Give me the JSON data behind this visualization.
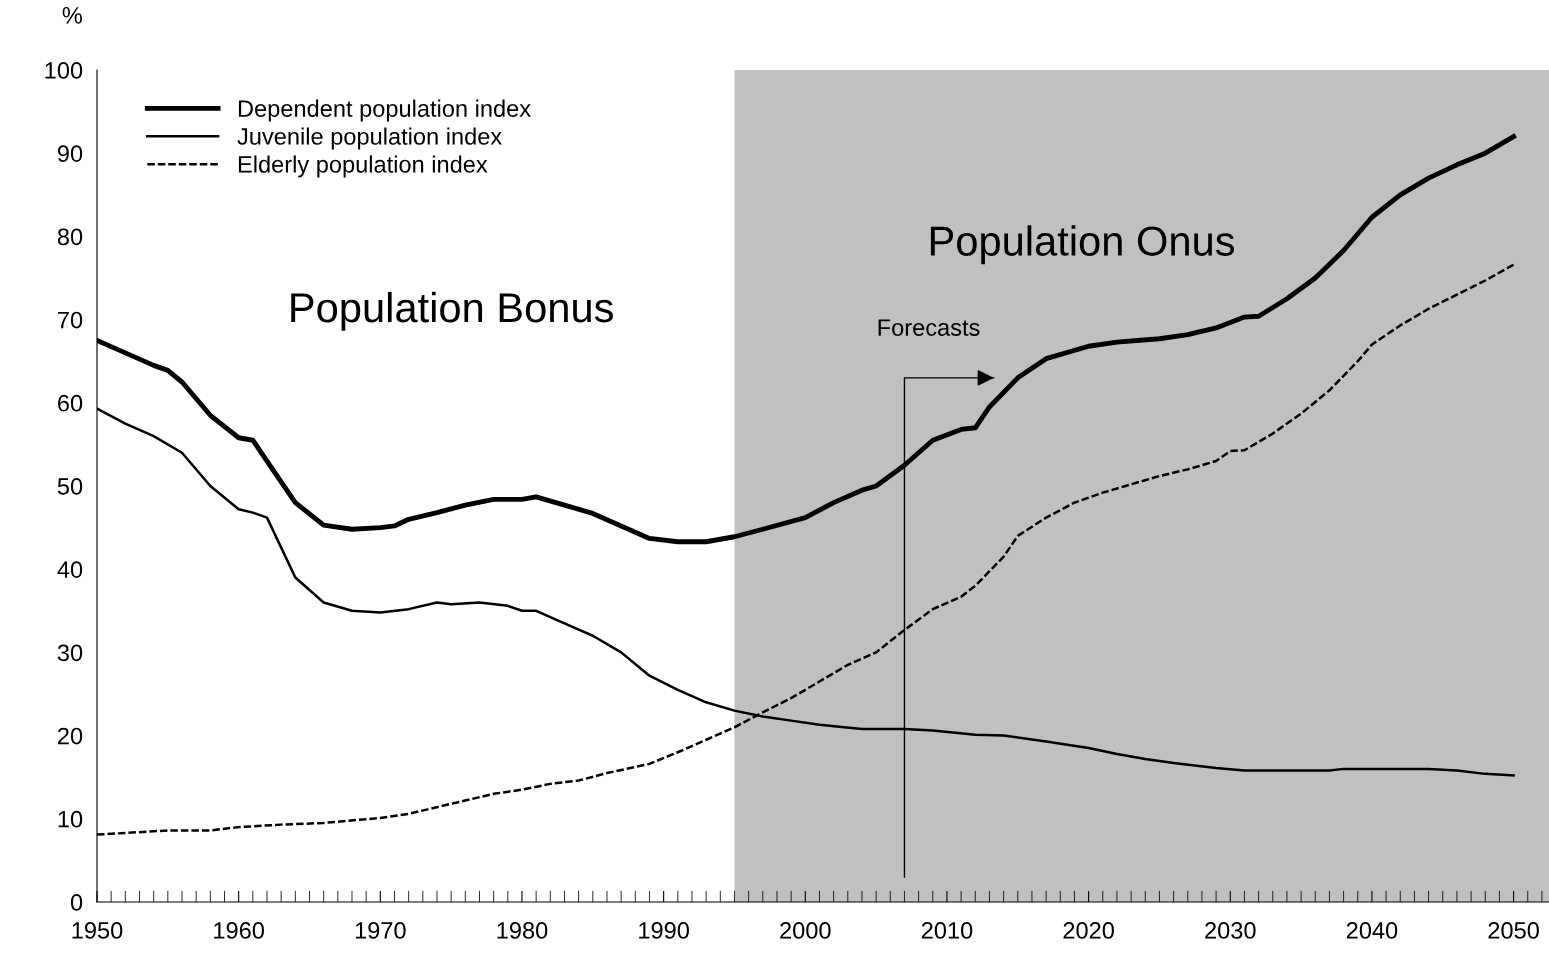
{
  "chart_data": {
    "type": "line",
    "ylabel": "%",
    "xlim": [
      1950,
      2052.5
    ],
    "xticks": [
      1950,
      1960,
      1970,
      1980,
      1990,
      2000,
      2010,
      2020,
      2030,
      2040,
      2050
    ],
    "ylim": [
      0,
      100
    ],
    "yticks": [
      0,
      10,
      20,
      30,
      40,
      50,
      60,
      70,
      80,
      90,
      100
    ],
    "grid": false,
    "legend": "top left",
    "marker": "none",
    "bands": [
      {
        "axis": "x",
        "from": 1995,
        "to": 2052.5,
        "color": "#c0c0c0"
      }
    ],
    "annotations": [
      "Population Bonus",
      "Population Onus",
      "Forecasts"
    ],
    "series": [
      {
        "name": "Dependent population index",
        "color": "#000000",
        "line_style": "solid",
        "x": [
          1950,
          1952,
          1954,
          1955,
          1956,
          1958,
          1960,
          1961,
          1962,
          1964,
          1966,
          1968,
          1970,
          1971,
          1972,
          1974,
          1976,
          1978,
          1980,
          1981,
          1983,
          1985,
          1987,
          1989,
          1991,
          1993,
          1995,
          1997,
          2000,
          2002,
          2004,
          2005,
          2007,
          2009,
          2011,
          2012,
          2013,
          2015,
          2017,
          2020,
          2022,
          2025,
          2027,
          2029,
          2031,
          2032,
          2034,
          2036,
          2038,
          2040,
          2042,
          2044,
          2046,
          2048,
          2050
        ],
        "values": [
          67.5,
          66,
          64.5,
          63.9,
          62.5,
          58.5,
          55.8,
          55.5,
          53,
          48,
          45.3,
          44.8,
          45,
          45.2,
          46,
          46.8,
          47.7,
          48.4,
          48.4,
          48.7,
          47.7,
          46.7,
          45.2,
          43.7,
          43.3,
          43.3,
          43.9,
          44.8,
          46.2,
          48,
          49.5,
          50,
          52.5,
          55.5,
          56.8,
          57,
          59.5,
          63,
          65.3,
          66.8,
          67.3,
          67.7,
          68.2,
          69,
          70.3,
          70.4,
          72.5,
          75,
          78.3,
          82.3,
          85,
          87,
          88.6,
          90,
          92
        ]
      },
      {
        "name": "Juvenile population index",
        "color": "#000000",
        "line_style": "solid",
        "x": [
          1950,
          1952,
          1954,
          1956,
          1958,
          1960,
          1961,
          1962,
          1964,
          1966,
          1968,
          1970,
          1972,
          1974,
          1975,
          1977,
          1979,
          1980,
          1981,
          1983,
          1985,
          1987,
          1989,
          1991,
          1993,
          1995,
          1997,
          1999,
          2001,
          2004,
          2007,
          2009,
          2012,
          2014,
          2017,
          2020,
          2022,
          2024,
          2026,
          2029,
          2031,
          2037,
          2038,
          2044,
          2046,
          2048,
          2050
        ],
        "values": [
          59.3,
          57.5,
          56,
          54,
          50,
          47.2,
          46.8,
          46.2,
          39,
          36,
          35,
          34.8,
          35.2,
          36,
          35.8,
          36,
          35.6,
          35,
          35,
          33.5,
          32,
          30,
          27.2,
          25.5,
          24,
          23,
          22.3,
          21.8,
          21.3,
          20.8,
          20.8,
          20.6,
          20.1,
          20,
          19.3,
          18.5,
          17.8,
          17.2,
          16.7,
          16.1,
          15.8,
          15.8,
          16,
          16,
          15.8,
          15.4,
          15.2
        ]
      },
      {
        "name": "Elderly population index",
        "color": "#000000",
        "line_style": "dashed",
        "x": [
          1950,
          1955,
          1958,
          1960,
          1963,
          1966,
          1970,
          1972,
          1975,
          1978,
          1980,
          1982,
          1984,
          1986,
          1989,
          1991,
          1993,
          1995,
          1997,
          1999,
          2001,
          2003,
          2005,
          2007,
          2009,
          2011,
          2012,
          2014,
          2015,
          2017,
          2019,
          2021,
          2023,
          2025,
          2027,
          2029,
          2030,
          2031,
          2033,
          2035,
          2037,
          2039,
          2040,
          2042,
          2044,
          2046,
          2048,
          2050
        ],
        "values": [
          8.1,
          8.6,
          8.6,
          9,
          9.3,
          9.5,
          10.1,
          10.6,
          11.8,
          13,
          13.5,
          14.2,
          14.6,
          15.5,
          16.6,
          18,
          19.5,
          21,
          22.8,
          24.5,
          26.5,
          28.5,
          30,
          32.7,
          35.2,
          36.7,
          38,
          41.5,
          44,
          46.2,
          48,
          49.2,
          50.2,
          51.2,
          52,
          53,
          54.2,
          54.3,
          56.3,
          58.7,
          61.5,
          65,
          67,
          69.3,
          71.3,
          73,
          74.7,
          76.6
        ]
      }
    ]
  }
}
